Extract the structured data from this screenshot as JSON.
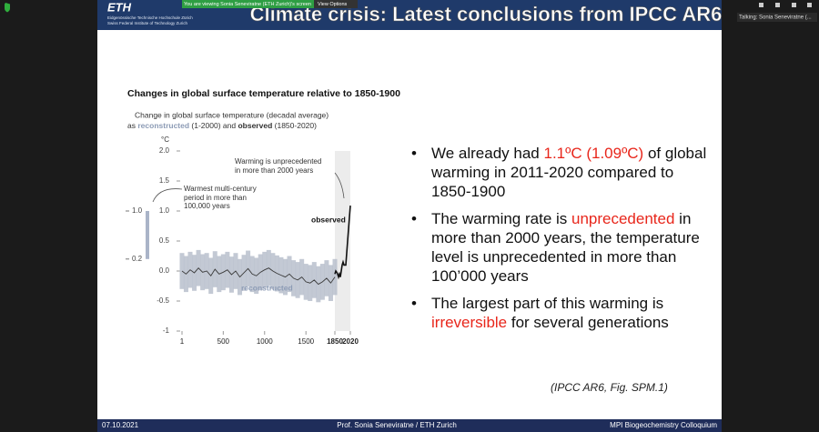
{
  "zoom": {
    "viewing_banner": "You are viewing Sonia Seneviratne (ETH Zurich)'s screen",
    "view_options": "View Options",
    "talking": "Talking: Sonia Seneviratne (..."
  },
  "slide": {
    "logo": "ETH",
    "logo_line1": "Eidgenössische Technische Hochschule Zürich",
    "logo_line2": "Swiss Federal Institute of Technology Zurich",
    "title": "Climate crisis: Latest conclusions from IPCC AR6",
    "highlight_color": "#e8261b",
    "bullets": [
      [
        "We already had ",
        "1.1ºC (1.09ºC)",
        " of global warming in 2011-2020 compared to 1850-1900"
      ],
      [
        "The warming rate is ",
        "unprecedented",
        " in more than 2000 years, the temperature level is unprecedented in more than 100’000 years"
      ],
      [
        "The largest part of this warming is ",
        "irreversible",
        " for several generations"
      ]
    ],
    "reference": "(IPCC AR6, Fig. SPM.1)",
    "footer_date": "07.10.2021",
    "footer_author": "Prof. Sonia Seneviratne / ETH Zurich",
    "footer_event": "MPI Biogeochemistry Colloquium"
  },
  "chart_data": {
    "type": "line",
    "title": "Changes in global surface temperature relative to 1850-1900",
    "subtitle": "Change in global surface temperature (decadal average)",
    "subtitle2": [
      "as",
      "reconstructed",
      "(1-2000) and",
      "observed",
      "(1850-2020)"
    ],
    "y_unit": "°C",
    "annotation_unprecedented": [
      "Warming is unprecedented",
      "in more than 2000 years"
    ],
    "annotation_warmest": [
      "Warmest multi-century",
      "period in more than",
      "100,000 years"
    ],
    "warm_period": [
      {
        "value": 1.0,
        "label": "1.0"
      },
      {
        "value": 0.2,
        "label": "0.2"
      }
    ],
    "xlim": [
      1,
      2020
    ],
    "xticks": [
      1,
      500,
      1000,
      1500,
      1850,
      2020
    ],
    "ylim": [
      -1,
      2
    ],
    "yticks": [
      {
        "value": 2,
        "label": "2.0"
      },
      1.5,
      {
        "value": 1,
        "label": "1.0"
      },
      0.5,
      {
        "value": 0,
        "label": "0.0"
      },
      -0.5,
      -1
    ],
    "series": [
      {
        "name": "reconstructed",
        "color": "#3a3a3a",
        "band_color": "#b9c0cc",
        "label_color": "#8c9bb5",
        "x": [
          1,
          50,
          100,
          150,
          200,
          250,
          300,
          350,
          400,
          450,
          500,
          550,
          600,
          650,
          700,
          750,
          800,
          850,
          900,
          950,
          1000,
          1050,
          1100,
          1150,
          1200,
          1250,
          1300,
          1350,
          1400,
          1450,
          1500,
          1550,
          1600,
          1650,
          1700,
          1750,
          1800,
          1850
        ],
        "values": [
          0.0,
          -0.05,
          0.02,
          -0.03,
          0.05,
          -0.02,
          0.0,
          -0.08,
          0.03,
          -0.05,
          -0.02,
          0.02,
          -0.06,
          0.0,
          -0.1,
          -0.03,
          0.04,
          -0.05,
          -0.08,
          -0.02,
          0.02,
          0.05,
          0.0,
          -0.04,
          -0.07,
          -0.1,
          -0.05,
          -0.12,
          -0.15,
          -0.1,
          -0.18,
          -0.2,
          -0.15,
          -0.22,
          -0.18,
          -0.12,
          -0.2,
          -0.1
        ],
        "upper": [
          0.3,
          0.25,
          0.32,
          0.27,
          0.35,
          0.28,
          0.3,
          0.22,
          0.33,
          0.25,
          0.28,
          0.32,
          0.24,
          0.3,
          0.2,
          0.27,
          0.34,
          0.25,
          0.22,
          0.28,
          0.32,
          0.35,
          0.3,
          0.26,
          0.23,
          0.2,
          0.25,
          0.18,
          0.15,
          0.2,
          0.12,
          0.1,
          0.15,
          0.08,
          0.12,
          0.18,
          0.1,
          0.2
        ],
        "lower": [
          -0.3,
          -0.35,
          -0.28,
          -0.33,
          -0.25,
          -0.32,
          -0.3,
          -0.38,
          -0.27,
          -0.35,
          -0.32,
          -0.28,
          -0.36,
          -0.3,
          -0.4,
          -0.33,
          -0.26,
          -0.35,
          -0.38,
          -0.32,
          -0.28,
          -0.25,
          -0.3,
          -0.34,
          -0.37,
          -0.4,
          -0.35,
          -0.42,
          -0.45,
          -0.4,
          -0.48,
          -0.5,
          -0.45,
          -0.52,
          -0.48,
          -0.42,
          -0.5,
          -0.4
        ]
      },
      {
        "name": "observed",
        "color": "#111111",
        "x": [
          1850,
          1860,
          1870,
          1880,
          1890,
          1900,
          1910,
          1920,
          1930,
          1940,
          1950,
          1960,
          1970,
          1980,
          1990,
          2000,
          2010,
          2020
        ],
        "values": [
          -0.05,
          0,
          -0.02,
          -0.05,
          -0.1,
          -0.05,
          -0.1,
          0.0,
          0.1,
          0.15,
          0.1,
          0.1,
          0.1,
          0.3,
          0.5,
          0.7,
          0.9,
          1.09
        ]
      }
    ]
  }
}
